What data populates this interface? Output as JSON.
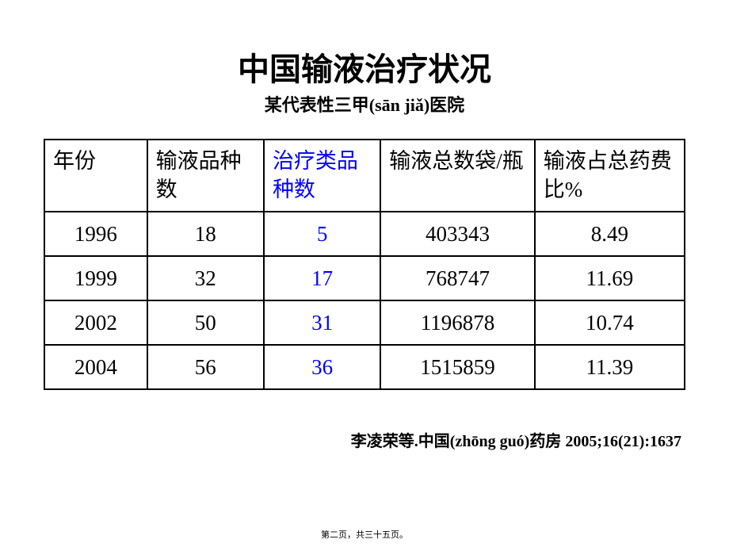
{
  "header": {
    "title": "中国输液治疗状况",
    "subtitle": "某代表性三甲(sān jiǎ)医院"
  },
  "table": {
    "columns": [
      {
        "label": "年份",
        "class": "col-year",
        "highlight": false
      },
      {
        "label": "输液品种数",
        "class": "col-variety",
        "highlight": false
      },
      {
        "label": "治疗类品种数",
        "class": "col-therapy",
        "highlight": true
      },
      {
        "label": "输液总数袋/瓶",
        "class": "col-total",
        "highlight": false
      },
      {
        "label": "输液占总药费比%",
        "class": "col-percent",
        "highlight": false
      }
    ],
    "rows": [
      {
        "cells": [
          "1996",
          "18",
          "5",
          "403343",
          "8.49"
        ]
      },
      {
        "cells": [
          "1999",
          "32",
          "17",
          "768747",
          "11.69"
        ]
      },
      {
        "cells": [
          "2002",
          "50",
          "31",
          "1196878",
          "10.74"
        ]
      },
      {
        "cells": [
          "2004",
          "56",
          "36",
          "1515859",
          "11.39"
        ]
      }
    ],
    "highlight_column_index": 2,
    "border_color": "#000000",
    "text_color": "#000000",
    "highlight_color": "#0000ff",
    "font_size": 27,
    "background_color": "#ffffff"
  },
  "citation": "李凌荣等.中国(zhōng guó)药房 2005;16(21):1637",
  "footer": "第二页，共三十五页。"
}
